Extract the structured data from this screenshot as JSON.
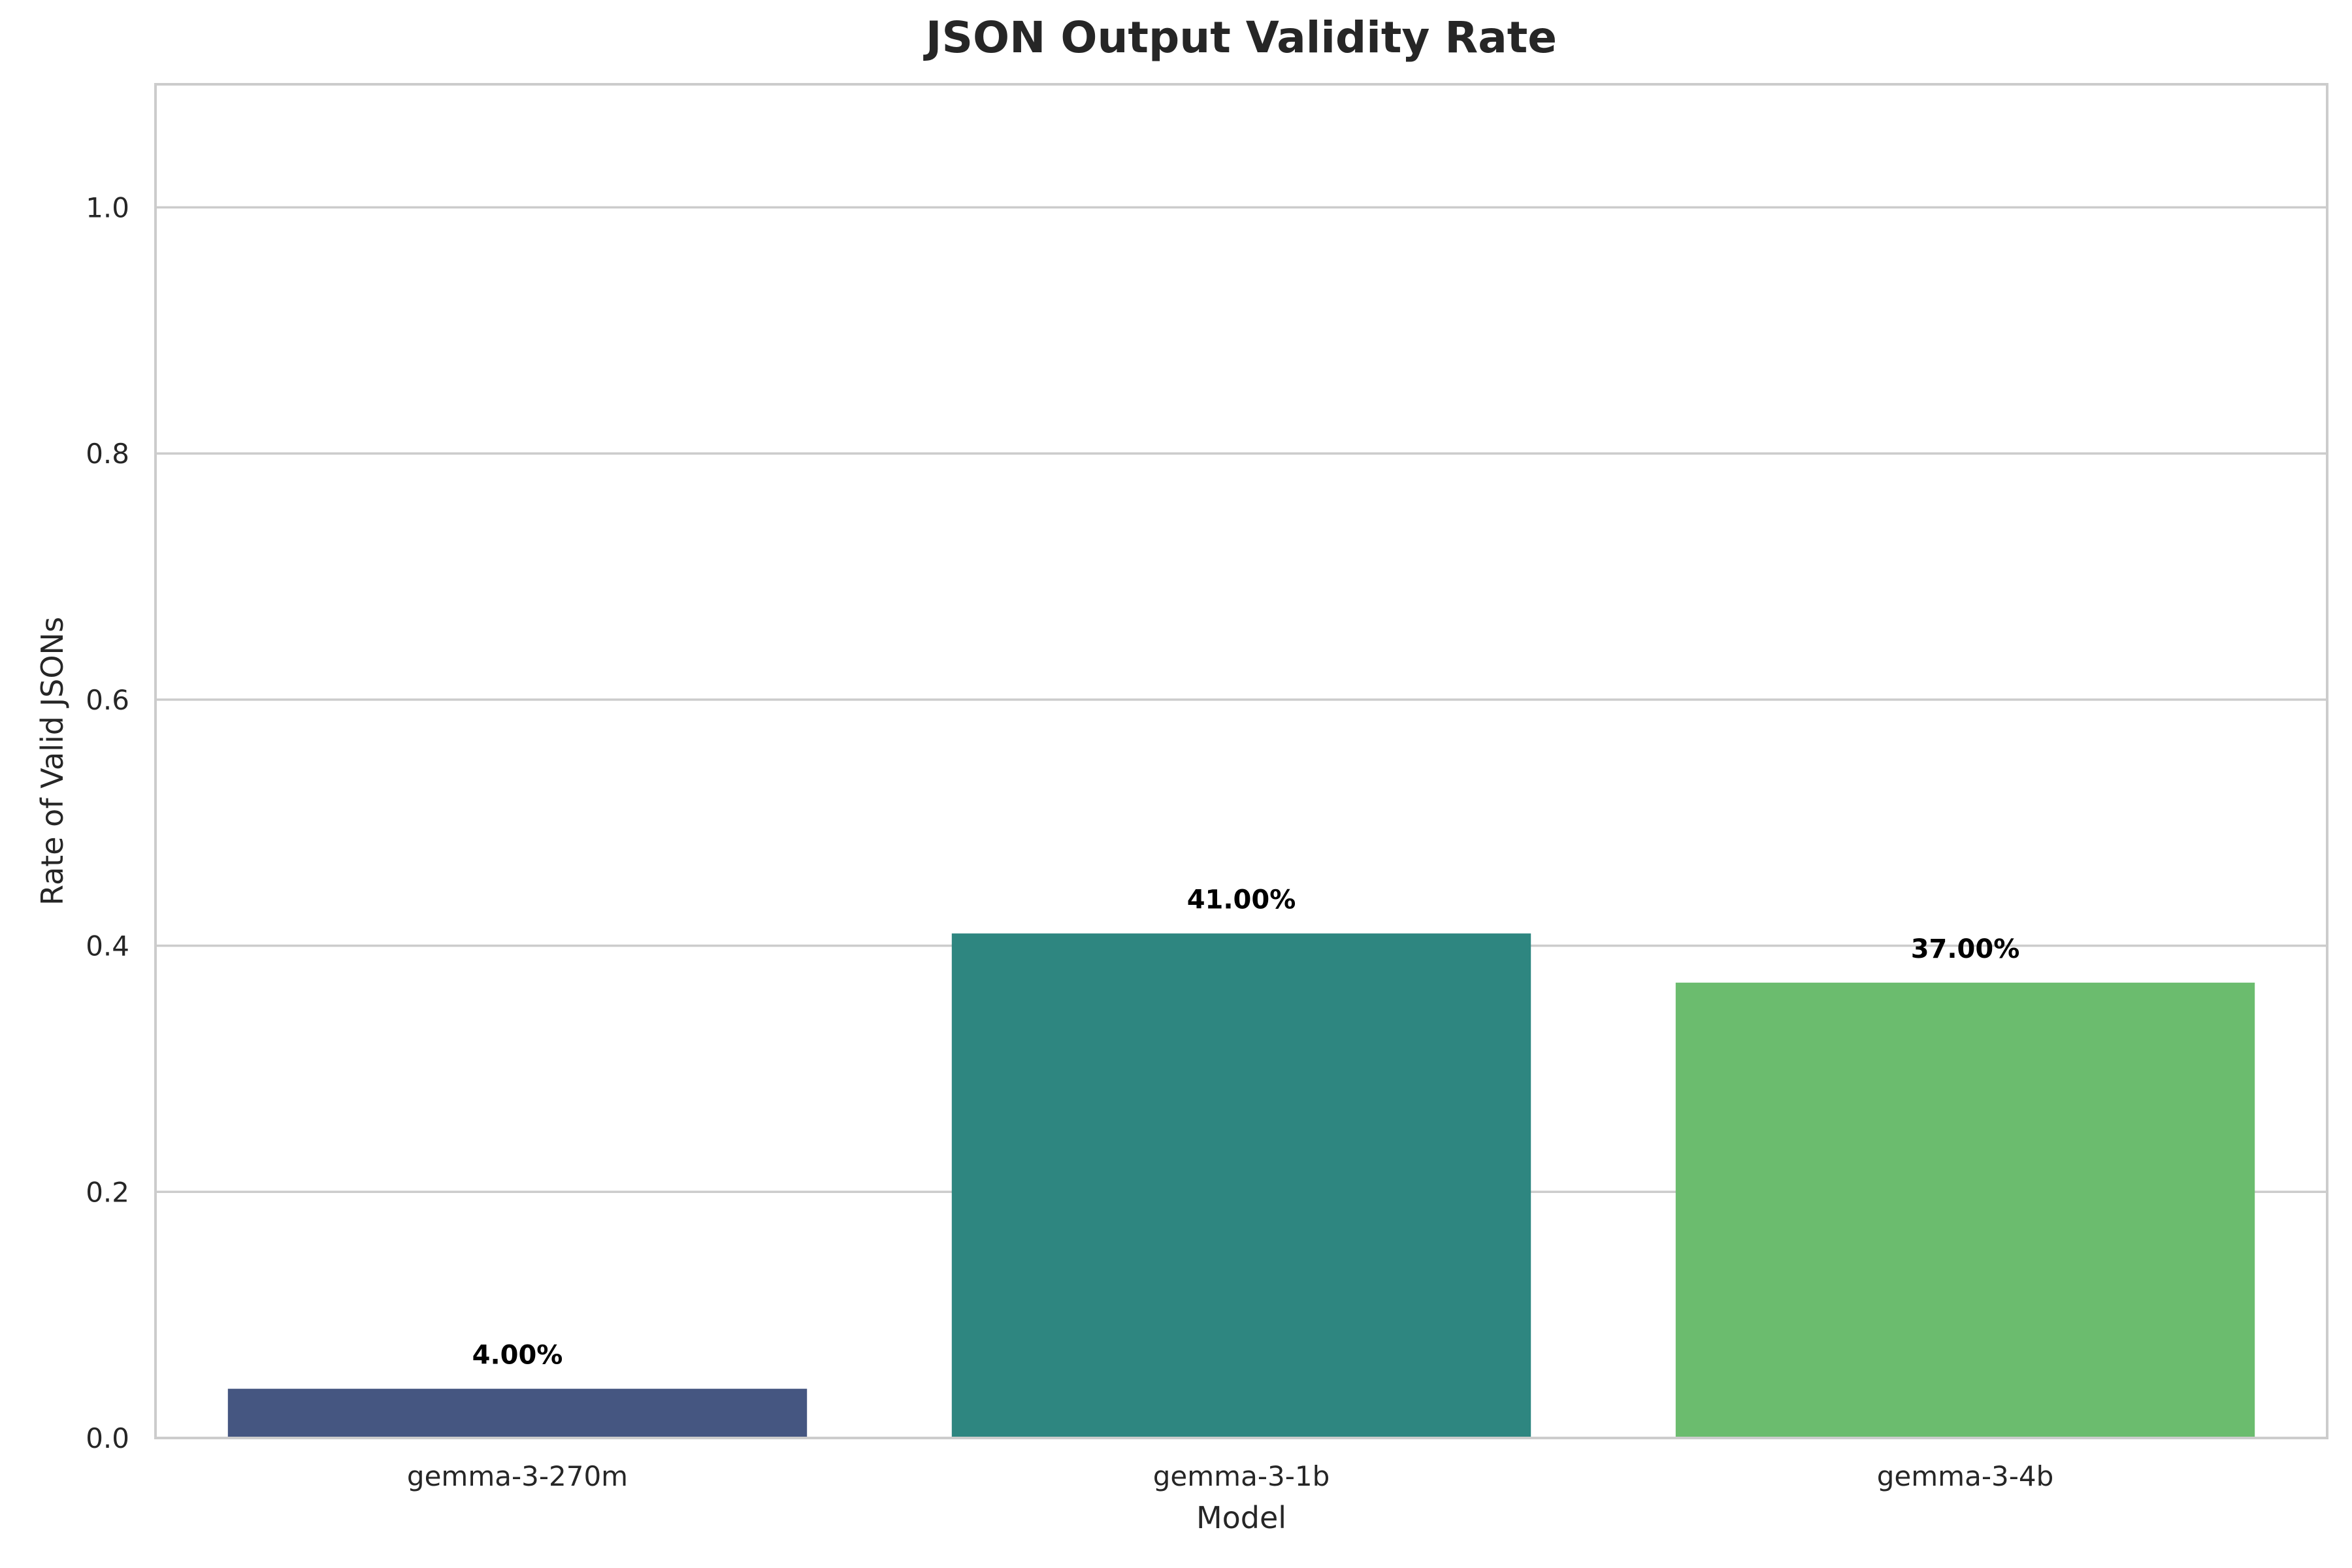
{
  "chart_data": {
    "type": "bar",
    "title": "JSON Output Validity Rate",
    "xlabel": "Model",
    "ylabel": "Rate of Valid JSONs",
    "categories": [
      "gemma-3-270m",
      "gemma-3-1b",
      "gemma-3-4b"
    ],
    "values": [
      0.04,
      0.41,
      0.37
    ],
    "data_labels": [
      "4.00%",
      "41.00%",
      "37.00%"
    ],
    "colors": [
      "#455681",
      "#2e8680",
      "#6bbc6e"
    ],
    "ylim": [
      0,
      1.1
    ],
    "yticks": [
      0.0,
      0.2,
      0.4,
      0.6,
      0.8,
      1.0
    ],
    "ytick_labels": [
      "0.0",
      "0.2",
      "0.4",
      "0.6",
      "0.8",
      "1.0"
    ],
    "grid": "horizontal",
    "legend": "none"
  }
}
